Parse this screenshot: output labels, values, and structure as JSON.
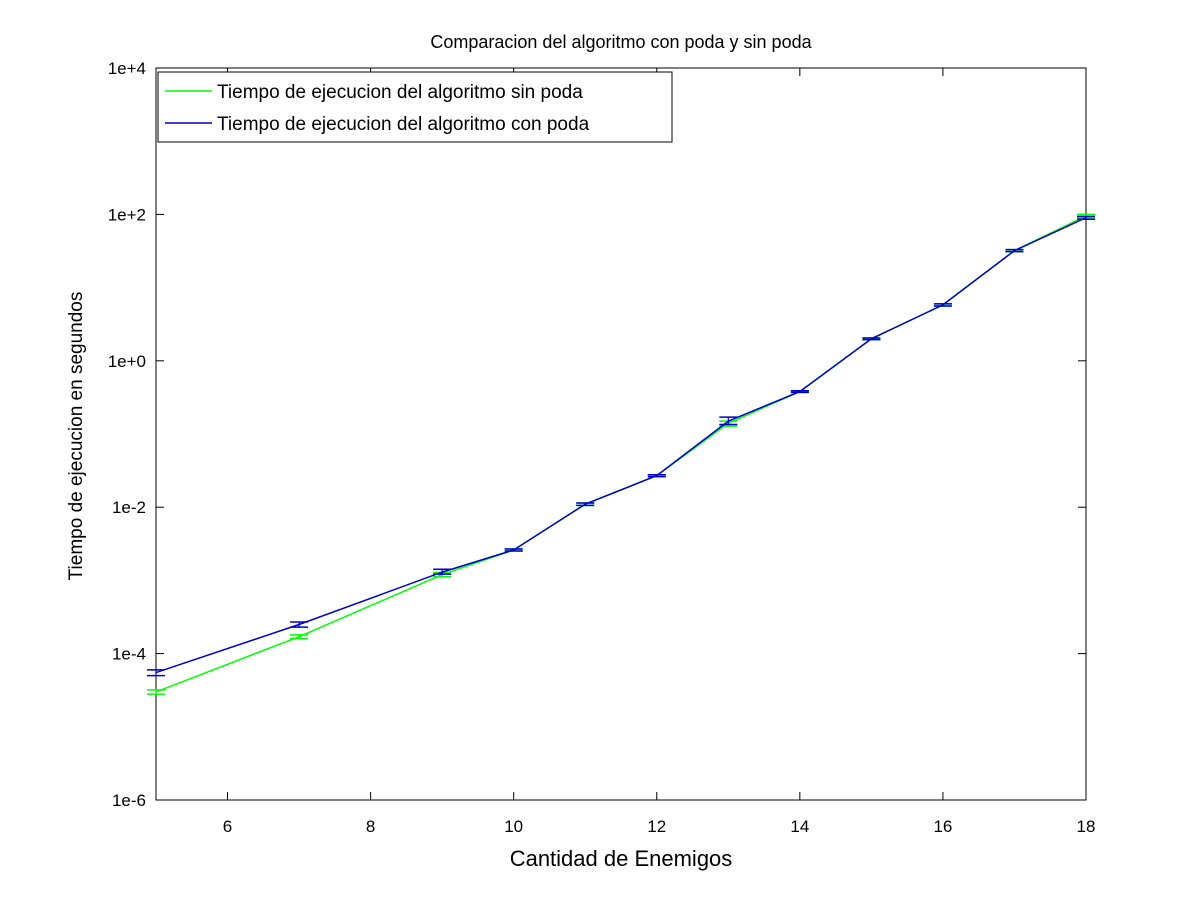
{
  "chart_data": {
    "type": "line",
    "title": "Comparacion del algoritmo con poda y sin poda",
    "xlabel": "Cantidad de Enemigos",
    "ylabel": "Tiempo de ejecucion en segundos",
    "xlim": [
      5,
      18
    ],
    "ylim": [
      1e-06,
      10000
    ],
    "yscale": "log",
    "grid": false,
    "legend_position": "top-left",
    "x_ticks": [
      6,
      8,
      10,
      12,
      14,
      16,
      18
    ],
    "x_tick_labels": [
      "6",
      "8",
      "10",
      "12",
      "14",
      "16",
      "18"
    ],
    "y_ticks": [
      1e-06,
      0.0001,
      0.01,
      1,
      100,
      10000
    ],
    "y_tick_labels": [
      "1e-6",
      "1e-4",
      "1e-2",
      "1e+0",
      "1e+2",
      "1e+4"
    ],
    "series": [
      {
        "name": "Tiempo de ejecucion del algoritmo sin poda",
        "color": "#00ff00",
        "x": [
          5,
          7,
          9,
          10,
          11,
          12,
          13,
          14,
          15,
          16,
          17,
          18
        ],
        "y": [
          3e-05,
          0.00017,
          0.0012,
          0.0026,
          0.011,
          0.027,
          0.14,
          0.38,
          2.0,
          5.8,
          32,
          95
        ],
        "err_low": [
          2.8e-05,
          0.00016,
          0.00112,
          0.00252,
          0.0106,
          0.0262,
          0.128,
          0.37,
          1.95,
          5.6,
          31,
          90
        ],
        "err_high": [
          3.2e-05,
          0.00018,
          0.00128,
          0.00268,
          0.0114,
          0.0278,
          0.15,
          0.39,
          2.05,
          6.0,
          33,
          100
        ]
      },
      {
        "name": "Tiempo de ejecucion del algoritmo con poda",
        "color": "#0000cc",
        "x": [
          5,
          7,
          9,
          10,
          11,
          12,
          13,
          14,
          15,
          16,
          17,
          18
        ],
        "y": [
          5.5e-05,
          0.00025,
          0.0013,
          0.0026,
          0.011,
          0.027,
          0.15,
          0.38,
          2.0,
          5.8,
          32,
          90
        ],
        "err_low": [
          5e-05,
          0.00023,
          0.00122,
          0.00252,
          0.0106,
          0.0262,
          0.135,
          0.37,
          1.95,
          5.6,
          31,
          86
        ],
        "err_high": [
          6e-05,
          0.00027,
          0.00142,
          0.00268,
          0.0114,
          0.0278,
          0.17,
          0.39,
          2.05,
          6.0,
          33,
          94
        ]
      }
    ]
  }
}
